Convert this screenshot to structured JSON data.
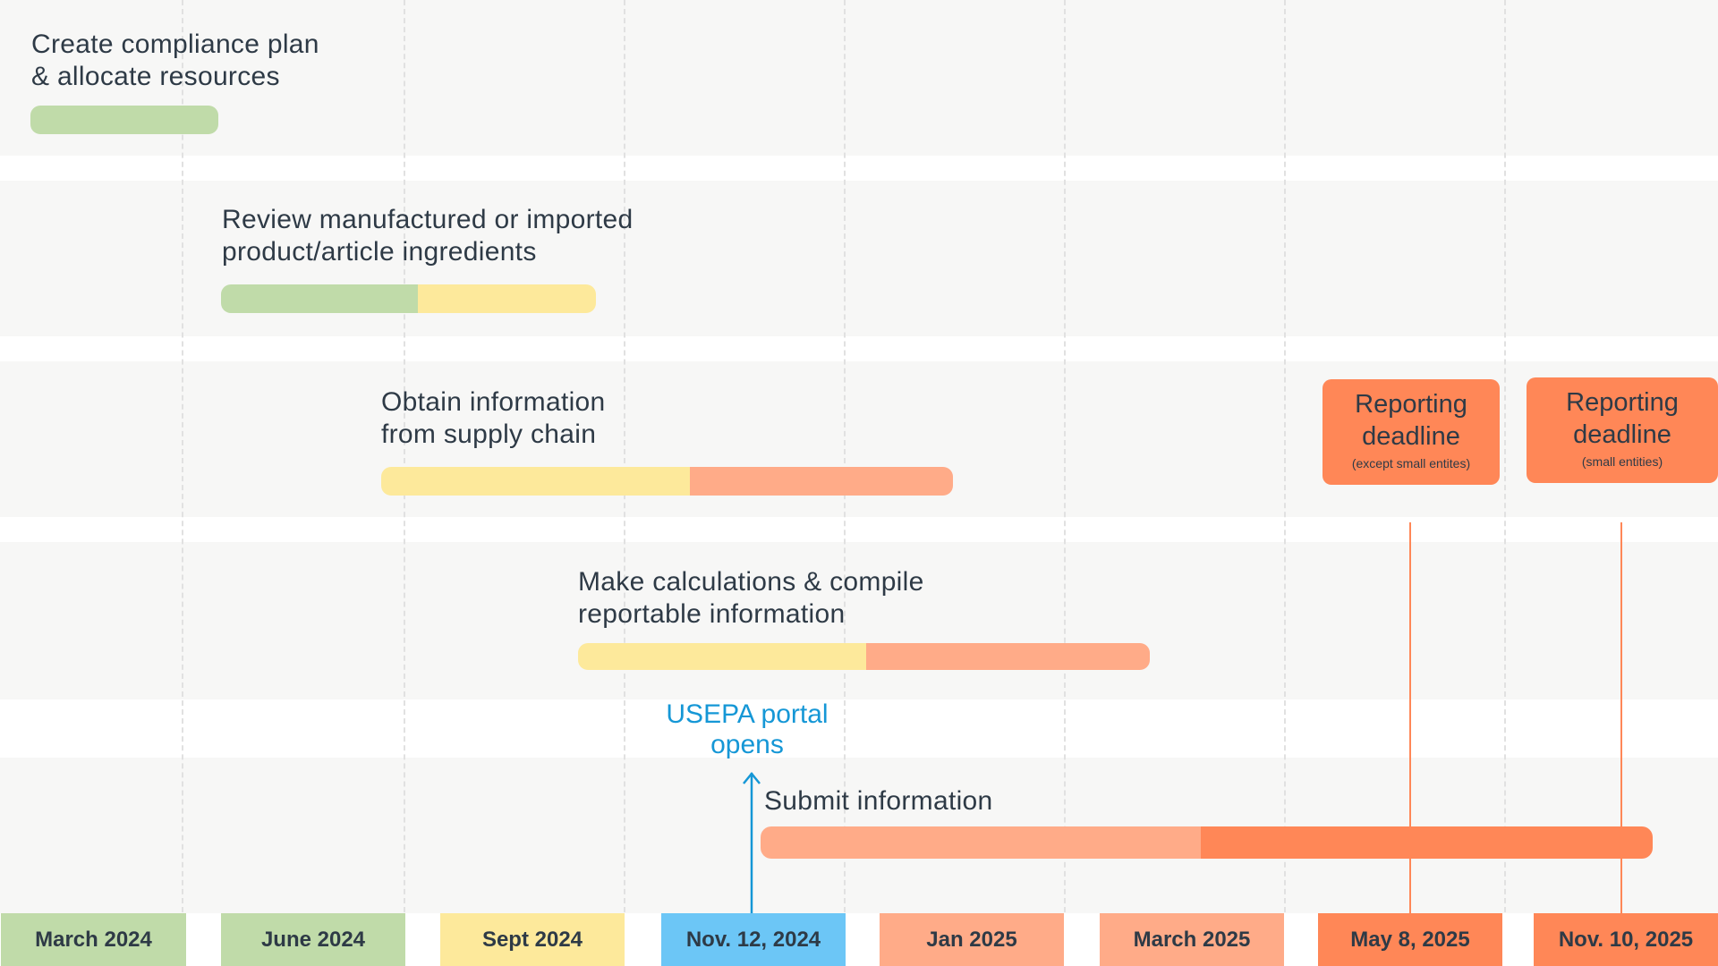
{
  "diagram": {
    "tasks": [
      {
        "line1": "Create compliance plan",
        "line2": "& allocate resources"
      },
      {
        "line1": "Review manufactured or imported",
        "line2": "product/article ingredients"
      },
      {
        "line1": "Obtain information",
        "line2": "from supply chain"
      },
      {
        "line1": "Make calculations & compile",
        "line2": "reportable information"
      },
      {
        "line1": "Submit information"
      }
    ],
    "milestone": {
      "line1": "USEPA portal",
      "line2": "opens",
      "color": "#1597d6"
    },
    "deadlines": [
      {
        "title1": "Reporting",
        "title2": "deadline",
        "subtitle": "(except small entites)"
      },
      {
        "title1": "Reporting",
        "title2": "deadline",
        "subtitle": "(small entities)"
      }
    ],
    "dates": [
      "March 2024",
      "June 2024",
      "Sept 2024",
      "Nov. 12, 2024",
      "Jan 2025",
      "March 2025",
      "May 8, 2025",
      "Nov. 10, 2025"
    ],
    "colors": {
      "plan": "#c0dba9",
      "gather": "#fde99b",
      "process": "#ffab88",
      "deadline": "#ff8757",
      "portal": "#6cc6f6",
      "band": "#f7f7f6"
    }
  }
}
